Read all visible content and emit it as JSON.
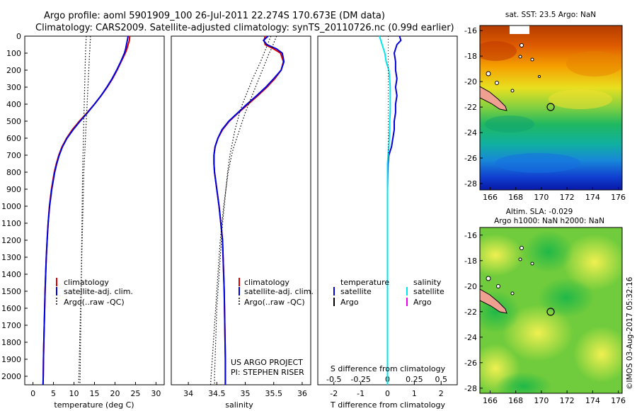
{
  "title_line1": "Argo profile: aoml 5901909_100 26-Jul-2011 22.274S 170.673E (DM data)",
  "title_line2": "Climatology: CARS2009. Satellite-adjusted climatology: synTS_20110726.nc (0.99d earlier)",
  "colors": {
    "climatology": "#dd0000",
    "satellite_adj": "#0000dd",
    "argo": "#000000",
    "salinity_satellite": "#00e5ee",
    "argo_salinity": "#ee00ee",
    "land": "#f0a090"
  },
  "chart_data": [
    {
      "type": "line",
      "xlabel": "temperature (deg C)",
      "ylim": [
        2050,
        0
      ],
      "xlim": [
        -2,
        32
      ],
      "xticks": [
        "0",
        "5",
        "10",
        "15",
        "20",
        "25",
        "30"
      ],
      "yticks": [
        "0",
        "100",
        "200",
        "300",
        "400",
        "500",
        "600",
        "700",
        "800",
        "900",
        "1000",
        "1100",
        "1200",
        "1300",
        "1400",
        "1500",
        "1600",
        "1700",
        "1800",
        "1900",
        "2000"
      ],
      "legend": [
        "climatology",
        "satellite-adj. clim.",
        "Argo(..raw -QC)"
      ],
      "depth": [
        0,
        25,
        50,
        75,
        100,
        150,
        200,
        250,
        300,
        350,
        400,
        450,
        500,
        550,
        600,
        650,
        700,
        750,
        800,
        900,
        1000,
        1100,
        1200,
        1300,
        1400,
        1500,
        1600,
        1700,
        1800,
        1900,
        2000,
        2050
      ],
      "series": [
        {
          "name": "climatology",
          "values": [
            23.6,
            23.5,
            23.2,
            22.9,
            22.5,
            21.5,
            20.5,
            19.4,
            18.1,
            16.6,
            15.0,
            13.2,
            11.3,
            9.6,
            8.2,
            7.1,
            6.3,
            5.7,
            5.2,
            4.5,
            4.0,
            3.7,
            3.45,
            3.25,
            3.1,
            2.95,
            2.85,
            2.75,
            2.65,
            2.55,
            2.5,
            2.45
          ]
        },
        {
          "name": "satellite-adj. clim.",
          "values": [
            23.2,
            23.0,
            22.8,
            22.6,
            22.3,
            21.4,
            20.4,
            19.3,
            18.0,
            16.6,
            15.0,
            13.3,
            11.5,
            9.8,
            8.3,
            7.2,
            6.4,
            5.8,
            5.3,
            4.6,
            4.05,
            3.7,
            3.45,
            3.25,
            3.1,
            2.95,
            2.85,
            2.75,
            2.65,
            2.55,
            2.5,
            2.45
          ]
        },
        {
          "name": "Argo(..raw -QC)",
          "values": [
            14.0,
            14.0,
            13.9,
            13.9,
            13.8,
            13.7,
            13.6,
            13.5,
            13.4,
            13.3,
            13.2,
            13.1,
            13.0,
            12.9,
            12.8,
            12.7,
            12.6,
            12.5,
            12.4,
            12.3,
            12.2,
            12.1,
            12.0,
            11.9,
            11.8,
            11.7,
            11.6,
            11.5,
            11.4,
            11.3,
            11.2,
            11.1
          ]
        },
        {
          "name": "Argo-2",
          "values": [
            13.0,
            12.95,
            12.9,
            12.85,
            12.8,
            12.75,
            12.7,
            12.65,
            12.6,
            12.55,
            12.5,
            12.45,
            12.4,
            12.35,
            12.3,
            12.25,
            12.2,
            12.15,
            12.1,
            12.05,
            12.0,
            11.95,
            11.9,
            11.85,
            11.8,
            11.75,
            11.7,
            11.65,
            11.6,
            11.55,
            11.5,
            11.45
          ]
        }
      ]
    },
    {
      "type": "line",
      "xlabel": "salinity",
      "ylim": [
        2050,
        0
      ],
      "xlim": [
        33.7,
        36.15
      ],
      "xticks": [
        "34",
        "34.5",
        "35",
        "35.5",
        "36"
      ],
      "legend": [
        "climatology",
        "satellite-adj. clim.",
        "Argo(..raw -QC)"
      ],
      "annotation": [
        "US ARGO PROJECT",
        "PI: STEPHEN RISER"
      ],
      "depth": [
        0,
        25,
        50,
        75,
        100,
        150,
        200,
        250,
        300,
        350,
        400,
        450,
        500,
        550,
        600,
        650,
        700,
        750,
        800,
        900,
        1000,
        1100,
        1200,
        1300,
        1400,
        1500,
        1600,
        1700,
        1800,
        1900,
        2000,
        2050
      ],
      "series": [
        {
          "name": "climatology",
          "values": [
            35.35,
            35.33,
            35.35,
            35.5,
            35.62,
            35.67,
            35.63,
            35.52,
            35.38,
            35.22,
            35.05,
            34.88,
            34.72,
            34.6,
            34.52,
            34.47,
            34.45,
            34.45,
            34.46,
            34.5,
            34.54,
            34.57,
            34.6,
            34.61,
            34.62,
            34.63,
            34.635,
            34.64,
            34.645,
            34.65,
            34.65,
            34.65
          ]
        },
        {
          "name": "satellite-adj. clim.",
          "values": [
            35.4,
            35.32,
            35.38,
            35.55,
            35.65,
            35.68,
            35.63,
            35.5,
            35.36,
            35.2,
            35.03,
            34.87,
            34.71,
            34.59,
            34.52,
            34.47,
            34.45,
            34.45,
            34.46,
            34.5,
            34.54,
            34.57,
            34.6,
            34.61,
            34.62,
            34.63,
            34.635,
            34.64,
            34.645,
            34.65,
            34.65,
            34.65
          ]
        },
        {
          "name": "Argo(..raw -QC)",
          "values": [
            35.55,
            35.52,
            35.49,
            35.46,
            35.42,
            35.36,
            35.3,
            35.24,
            35.18,
            35.12,
            35.06,
            35.0,
            34.95,
            34.9,
            34.85,
            34.8,
            34.76,
            34.73,
            34.7,
            34.66,
            34.62,
            34.59,
            34.56,
            34.54,
            34.52,
            34.5,
            34.48,
            34.46,
            34.44,
            34.42,
            34.4,
            34.39
          ]
        },
        {
          "name": "Argo-2",
          "values": [
            35.45,
            35.42,
            35.39,
            35.36,
            35.33,
            35.27,
            35.2,
            35.13,
            35.07,
            35.01,
            34.95,
            34.9,
            34.86,
            34.82,
            34.79,
            34.76,
            34.73,
            34.71,
            34.69,
            34.66,
            34.63,
            34.6,
            34.58,
            34.56,
            34.54,
            34.52,
            34.5,
            34.49,
            34.48,
            34.47,
            34.46,
            34.46
          ]
        }
      ]
    },
    {
      "type": "line",
      "xlabel": "T difference from climatology",
      "xlabel2": "S difference from climatology",
      "ylim": [
        2050,
        0
      ],
      "xlim": [
        -2.6,
        2.6
      ],
      "xticks": [
        "-2",
        "-1",
        "0",
        "1",
        "2"
      ],
      "xticks2": [
        "-0.5",
        "-0.25",
        "0",
        "0.25",
        "0.5"
      ],
      "legend_temperature": [
        "temperature",
        "satellite",
        "Argo"
      ],
      "legend_salinity": [
        "salinity",
        "satellite",
        "Argo"
      ],
      "depth": [
        0,
        25,
        50,
        75,
        100,
        150,
        200,
        250,
        300,
        350,
        400,
        450,
        500,
        550,
        600,
        650,
        700,
        750,
        800,
        900,
        1000,
        1100,
        1200,
        1300,
        1400,
        1500,
        1600,
        1700,
        1800,
        1900,
        2000,
        2050
      ],
      "series": [
        {
          "name": "temperature satellite",
          "values": [
            0.45,
            0.5,
            0.35,
            0.3,
            0.25,
            0.3,
            0.3,
            0.35,
            0.3,
            0.35,
            0.3,
            0.3,
            0.25,
            0.25,
            0.2,
            0.15,
            0.05,
            0.02,
            0.01,
            0.0,
            0.0,
            0.0,
            0.0,
            0.0,
            0.0,
            0.0,
            0.0,
            0.0,
            0.0,
            0.0,
            0.0,
            0.0
          ]
        },
        {
          "name": "salinity satellite",
          "values": [
            -0.3,
            -0.25,
            -0.2,
            -0.15,
            -0.1,
            -0.05,
            0.05,
            0.08,
            0.1,
            0.1,
            0.1,
            0.1,
            0.08,
            0.08,
            0.06,
            0.05,
            0.02,
            0.0,
            0.0,
            0.0,
            0.0,
            0.0,
            0.0,
            0.0,
            0.0,
            0.0,
            0.0,
            0.0,
            0.0,
            0.0,
            0.0,
            0.0
          ]
        }
      ]
    },
    {
      "type": "heatmap",
      "title": "sat. SST: 23.5 Argo: NaN",
      "xticks": [
        "166",
        "168",
        "170",
        "172",
        "174",
        "176"
      ],
      "yticks": [
        "-16",
        "-18",
        "-20",
        "-22",
        "-24",
        "-26",
        "-28"
      ]
    },
    {
      "type": "heatmap",
      "title_line1": "Altim. SLA: -0.029",
      "title_line2": "Argo h1000: NaN h2000: NaN",
      "xticks": [
        "166",
        "168",
        "170",
        "172",
        "174",
        "176"
      ],
      "yticks": [
        "-16",
        "-18",
        "-20",
        "-22",
        "-24",
        "-26",
        "-28"
      ]
    }
  ],
  "side_label": "©IMOS 03-Aug-2017 05:32:16"
}
